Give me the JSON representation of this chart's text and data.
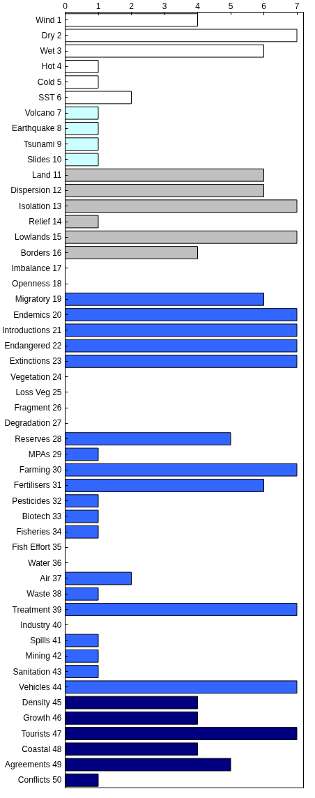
{
  "chart_data": {
    "type": "bar",
    "orientation": "horizontal",
    "categories": [
      "Wind 1",
      "Dry 2",
      "Wet 3",
      "Hot 4",
      "Cold 5",
      "SST 6",
      "Volcano 7",
      "Earthquake 8",
      "Tsunami 9",
      "Slides 10",
      "Land 11",
      "Dispersion 12",
      "Isolation 13",
      "Relief 14",
      "Lowlands 15",
      "Borders 16",
      "Imbalance 17",
      "Openness 18",
      "Migratory 19",
      "Endemics 20",
      "Introductions 21",
      "Endangered 22",
      "Extinctions 23",
      "Vegetation 24",
      "Loss Veg 25",
      "Fragment 26",
      "Degradation 27",
      "Reserves 28",
      "MPAs 29",
      "Farming 30",
      "Fertilisers 31",
      "Pesticides 32",
      "Biotech 33",
      "Fisheries 34",
      "Fish Effort 35",
      "Water 36",
      "Air 37",
      "Waste 38",
      "Treatment 39",
      "Industry 40",
      "Spills 41",
      "Mining 42",
      "Sanitation 43",
      "Vehicles 44",
      "Density 45",
      "Growth 46",
      "Tourists 47",
      "Coastal 48",
      "Agreements 49",
      "Conflicts 50"
    ],
    "values": [
      4,
      7,
      6,
      1,
      1,
      2,
      1,
      1,
      1,
      1,
      6,
      6,
      7,
      1,
      7,
      4,
      null,
      null,
      6,
      7,
      7,
      7,
      7,
      null,
      null,
      null,
      null,
      5,
      1,
      7,
      6,
      1,
      1,
      1,
      null,
      null,
      2,
      1,
      7,
      null,
      1,
      1,
      1,
      7,
      4,
      4,
      7,
      4,
      5,
      1
    ],
    "colors": [
      "#ffffff",
      "#ffffff",
      "#ffffff",
      "#ffffff",
      "#ffffff",
      "#ffffff",
      "#ccffff",
      "#ccffff",
      "#ccffff",
      "#ccffff",
      "#c0c0c0",
      "#c0c0c0",
      "#c0c0c0",
      "#c0c0c0",
      "#c0c0c0",
      "#c0c0c0",
      "#c0c0c0",
      "#c0c0c0",
      "#3366ff",
      "#3366ff",
      "#3366ff",
      "#3366ff",
      "#3366ff",
      "#3366ff",
      "#3366ff",
      "#3366ff",
      "#3366ff",
      "#3366ff",
      "#3366ff",
      "#3366ff",
      "#3366ff",
      "#3366ff",
      "#3366ff",
      "#3366ff",
      "#3366ff",
      "#3366ff",
      "#3366ff",
      "#3366ff",
      "#3366ff",
      "#3366ff",
      "#3366ff",
      "#3366ff",
      "#3366ff",
      "#3366ff",
      "#000080",
      "#000080",
      "#000080",
      "#000080",
      "#000080",
      "#000080"
    ],
    "xlim": [
      0,
      7.2
    ],
    "xticks": [
      0,
      1,
      2,
      3,
      4,
      5,
      6,
      7
    ],
    "grid": false
  }
}
